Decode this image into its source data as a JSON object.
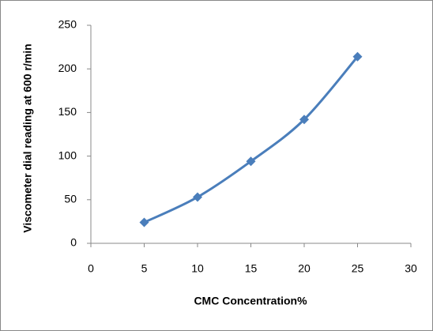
{
  "chart_data": {
    "type": "line",
    "x_label": "CMC Concentration%",
    "y_label": "Viscometer dial reading at 600 r/min",
    "x": [
      5,
      10,
      15,
      20,
      25
    ],
    "series": [
      {
        "color": "#4a7ebb",
        "values": [
          24,
          53,
          94,
          142,
          214
        ]
      }
    ],
    "xlim": [
      0,
      30
    ],
    "xticks": [
      0,
      5,
      10,
      15,
      20,
      25,
      30
    ],
    "ylim": [
      0,
      250
    ],
    "yticks": [
      0,
      50,
      100,
      150,
      200,
      250
    ],
    "grid": false,
    "smooth": true
  }
}
